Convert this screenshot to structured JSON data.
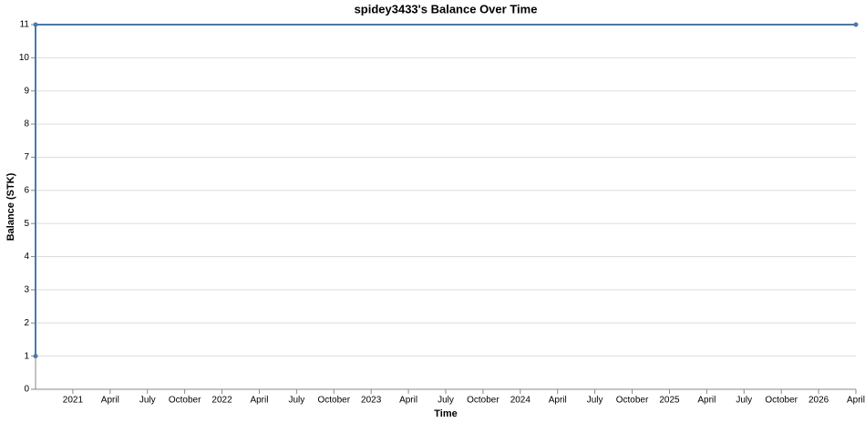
{
  "chart_data": {
    "type": "line",
    "title": "spidey3433's Balance Over Time",
    "x_label": "Time",
    "y_label": "Balance (STK)",
    "x": [
      "2020-10",
      "2020-10",
      "2026-04"
    ],
    "values": [
      1,
      11,
      11
    ],
    "color": "#4c78a8",
    "grid": true,
    "xlim": [
      "2020-10",
      "2026-04"
    ],
    "ylim": [
      0,
      11
    ],
    "yticks": [
      0,
      1,
      2,
      3,
      4,
      5,
      6,
      7,
      8,
      9,
      10,
      11
    ],
    "xticks": [
      {
        "value": "2021-01",
        "label": "2021"
      },
      {
        "value": "2021-04",
        "label": "April"
      },
      {
        "value": "2021-07",
        "label": "July"
      },
      {
        "value": "2021-10",
        "label": "October"
      },
      {
        "value": "2022-01",
        "label": "2022"
      },
      {
        "value": "2022-04",
        "label": "April"
      },
      {
        "value": "2022-07",
        "label": "July"
      },
      {
        "value": "2022-10",
        "label": "October"
      },
      {
        "value": "2023-01",
        "label": "2023"
      },
      {
        "value": "2023-04",
        "label": "April"
      },
      {
        "value": "2023-07",
        "label": "July"
      },
      {
        "value": "2023-10",
        "label": "October"
      },
      {
        "value": "2024-01",
        "label": "2024"
      },
      {
        "value": "2024-04",
        "label": "April"
      },
      {
        "value": "2024-07",
        "label": "July"
      },
      {
        "value": "2024-10",
        "label": "October"
      },
      {
        "value": "2025-01",
        "label": "2025"
      },
      {
        "value": "2025-04",
        "label": "April"
      },
      {
        "value": "2025-07",
        "label": "July"
      },
      {
        "value": "2025-10",
        "label": "October"
      },
      {
        "value": "2026-01",
        "label": "2026"
      },
      {
        "value": "2026-04",
        "label": "April"
      }
    ]
  }
}
